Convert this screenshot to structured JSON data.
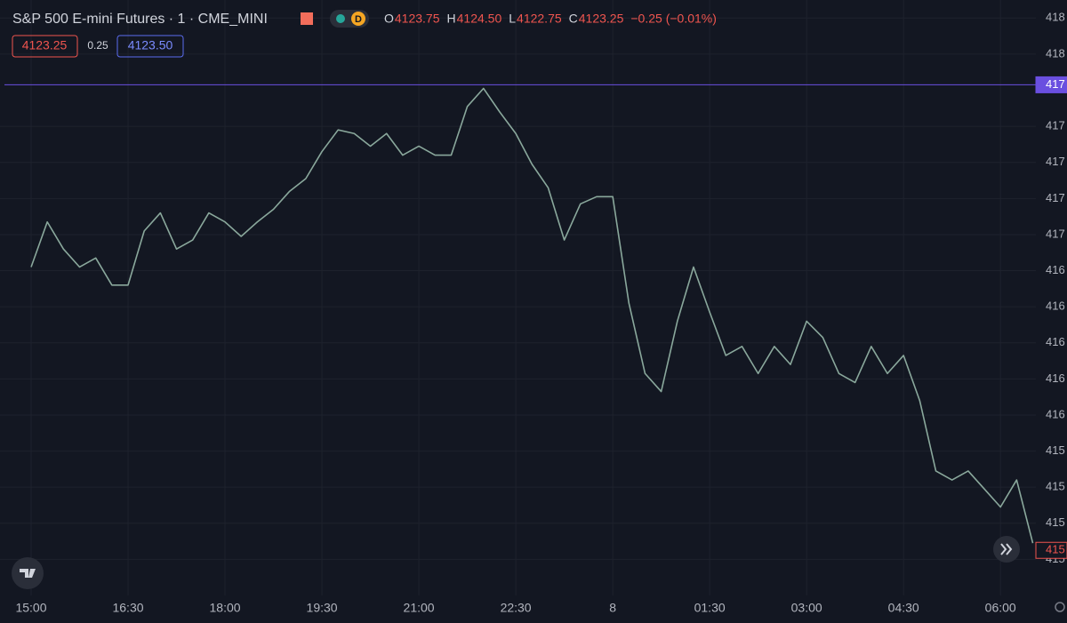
{
  "chart_data": {
    "type": "line",
    "title": "S&P 500 E-mini Futures · 1 · CME_MINI",
    "badge": "D",
    "ohlc": [
      {
        "key": "O",
        "text": "4123.75"
      },
      {
        "key": "H",
        "text": "4124.50"
      },
      {
        "key": "L",
        "text": "4122.75"
      },
      {
        "key": "C",
        "text": "4123.25"
      }
    ],
    "change": "−0.25 (−0.01%)",
    "bid": "4123.25",
    "spread": "0.25",
    "ask": "4123.50",
    "categories": [
      "15:00",
      null,
      null,
      null,
      null,
      null,
      "16:30",
      null,
      null,
      null,
      null,
      null,
      "18:00",
      null,
      null,
      null,
      null,
      null,
      "19:30",
      null,
      null,
      null,
      null,
      null,
      "21:00",
      null,
      null,
      null,
      null,
      null,
      "22:30",
      null,
      null,
      null,
      null,
      null,
      "8",
      null,
      null,
      null,
      null,
      null,
      "01:30",
      null,
      null,
      null,
      null,
      null,
      "03:00",
      null,
      null,
      null,
      null,
      null,
      "04:30",
      null,
      null,
      null,
      null,
      null,
      "06:00",
      null,
      null
    ],
    "values": [
      4168.2,
      4170.7,
      4169.2,
      4168.2,
      4168.7,
      4167.2,
      4167.2,
      4170.2,
      4171.2,
      4169.2,
      4169.7,
      4171.2,
      4170.7,
      4169.9,
      4170.7,
      4171.4,
      4172.4,
      4173.1,
      4174.6,
      4175.8,
      4175.6,
      4174.9,
      4175.6,
      4174.4,
      4174.9,
      4174.4,
      4174.4,
      4177.1,
      4178.1,
      4176.8,
      4175.6,
      4173.9,
      4172.6,
      4169.7,
      4171.7,
      4172.1,
      4172.1,
      4166.2,
      4162.3,
      4161.3,
      4165.2,
      4168.2,
      4165.7,
      4163.3,
      4163.8,
      4162.3,
      4163.8,
      4162.8,
      4165.2,
      4164.3,
      4162.3,
      4161.8,
      4163.8,
      4162.3,
      4163.3,
      4160.8,
      4156.9,
      4156.4,
      4156.9,
      4155.9,
      4154.9,
      4156.4,
      4152.9
    ],
    "color": "#8aa89c",
    "ylim": [
      4150,
      4183
    ],
    "yticks": [
      {
        "value": 4182,
        "label": "418"
      },
      {
        "value": 4180,
        "label": "418"
      },
      {
        "value": 4176,
        "label": "417"
      },
      {
        "value": 4174,
        "label": "417"
      },
      {
        "value": 4172,
        "label": "417"
      },
      {
        "value": 4170,
        "label": "417"
      },
      {
        "value": 4168,
        "label": "416"
      },
      {
        "value": 4166,
        "label": "416"
      },
      {
        "value": 4164,
        "label": "416"
      },
      {
        "value": 4162,
        "label": "416"
      },
      {
        "value": 4160,
        "label": "416"
      },
      {
        "value": 4158,
        "label": "415"
      },
      {
        "value": 4156,
        "label": "415"
      },
      {
        "value": 4154,
        "label": "415"
      },
      {
        "value": 4152,
        "label": "415"
      }
    ],
    "price_lines": [
      {
        "value": 4178.3,
        "label": "417",
        "color": "#6a4fe0"
      },
      {
        "value": 4152.5,
        "label": "415",
        "color": "#f0554f"
      }
    ],
    "grid": true
  }
}
